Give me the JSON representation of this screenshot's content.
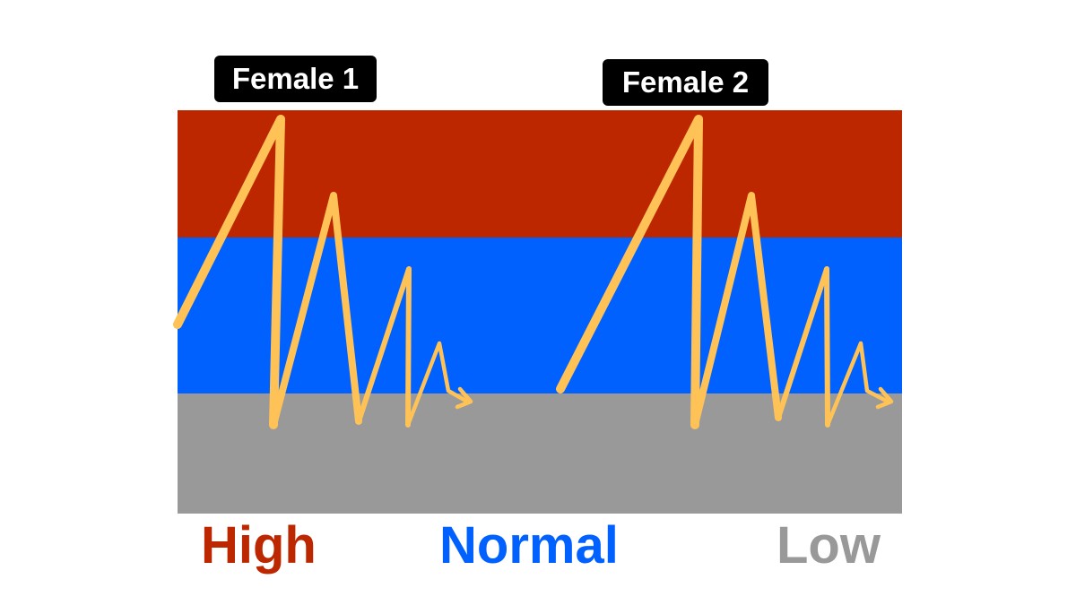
{
  "labels": {
    "female1": "Female 1",
    "female2": "Female 2"
  },
  "legend": {
    "high": {
      "text": "High",
      "color": "#BD2700"
    },
    "normal": {
      "text": "Normal",
      "color": "#0061FF"
    },
    "low": {
      "text": "Low",
      "color": "#999999"
    }
  },
  "bands": {
    "high_color": "#BD2700",
    "normal_color": "#0061FF",
    "low_color": "#999999"
  },
  "line_color": "#FFC256"
}
